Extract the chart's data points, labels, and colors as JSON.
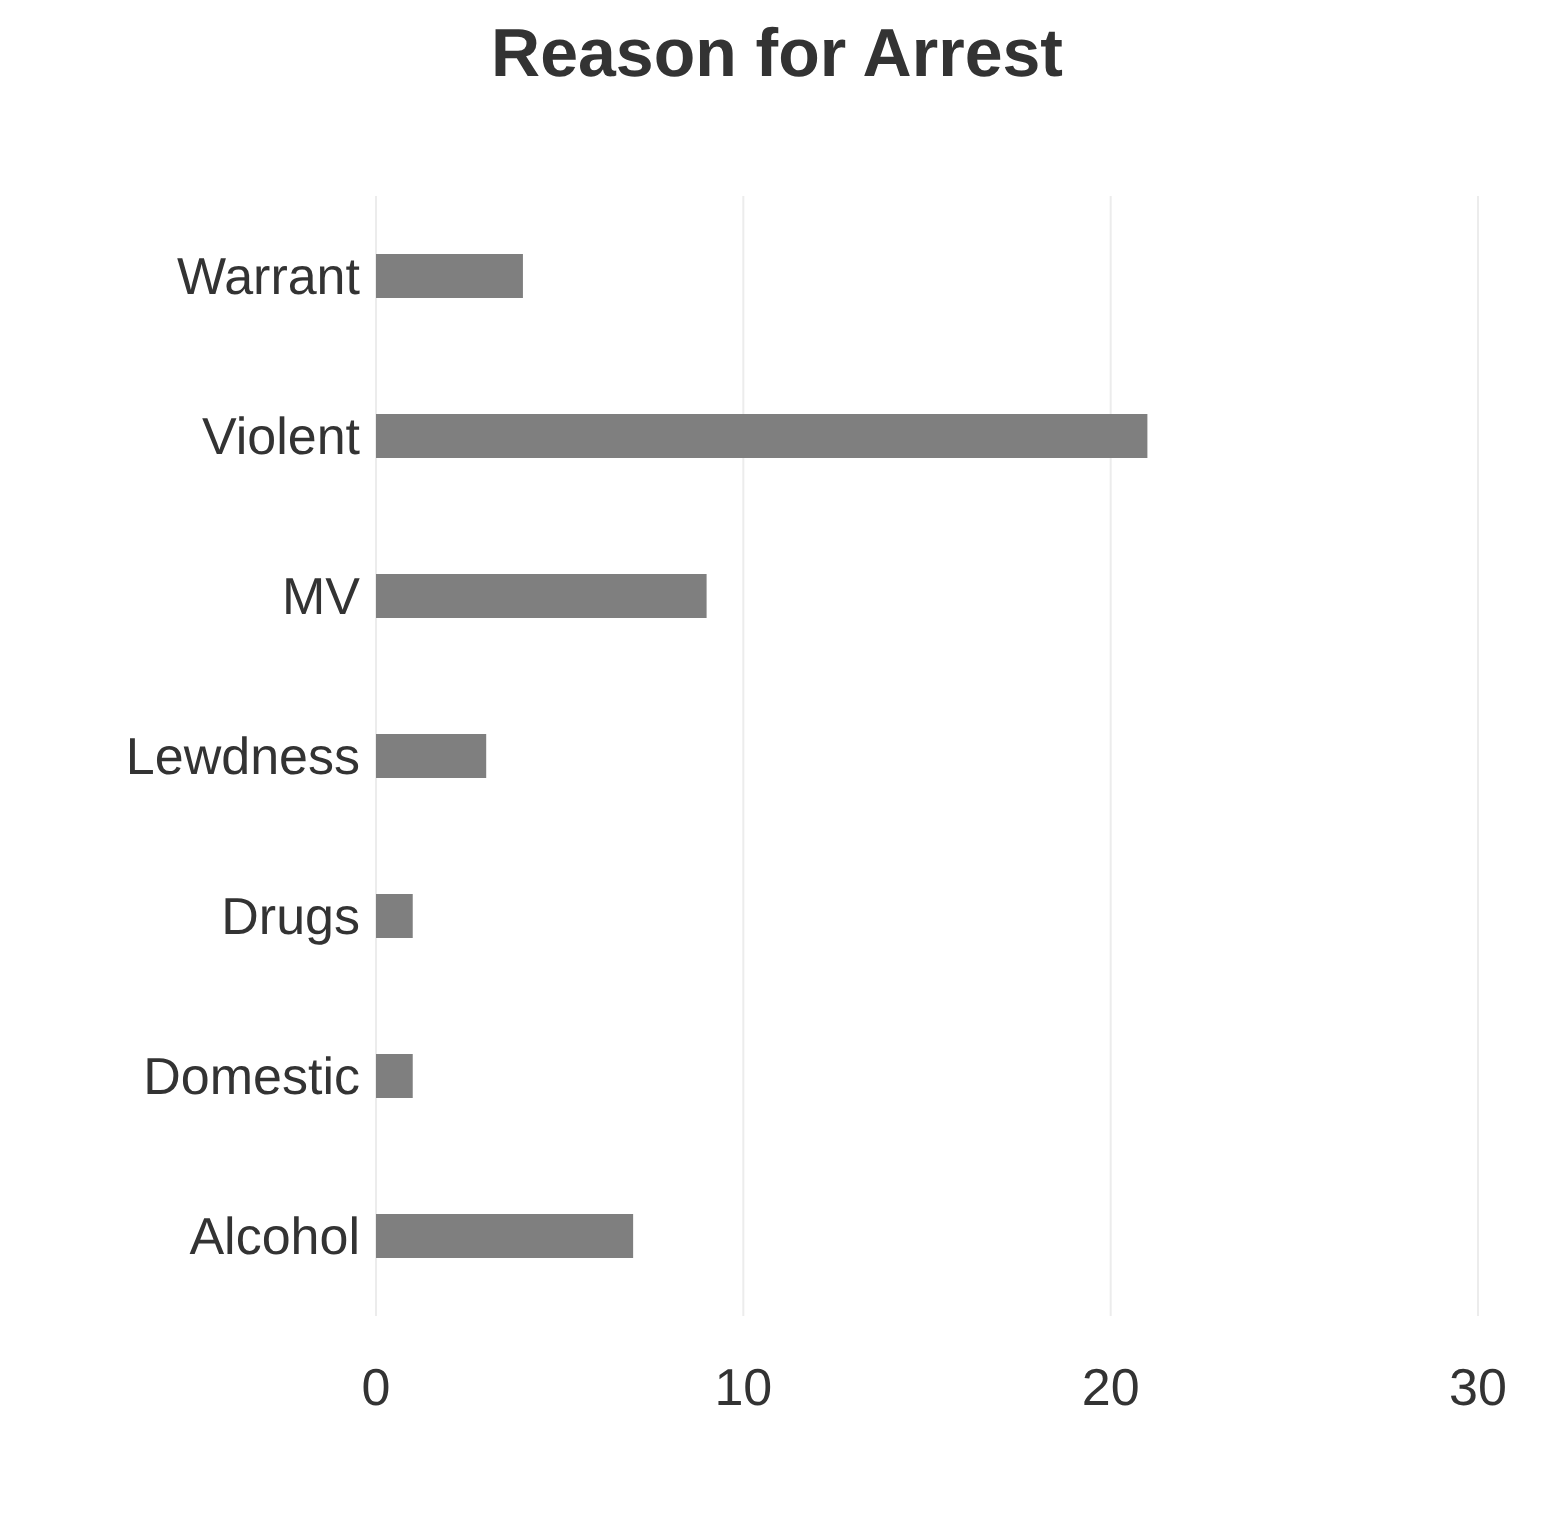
{
  "chart_data": {
    "type": "bar",
    "orientation": "horizontal",
    "title": "Reason for Arrest",
    "categories": [
      "Warrant",
      "Violent",
      "MV",
      "Lewdness",
      "Drugs",
      "Domestic",
      "Alcohol"
    ],
    "values": [
      4,
      21,
      9,
      3,
      1,
      1,
      7
    ],
    "color": "#7f7f7f",
    "xlim": [
      0,
      30
    ],
    "xticks": [
      0,
      10,
      20,
      30
    ],
    "grid": "x"
  }
}
